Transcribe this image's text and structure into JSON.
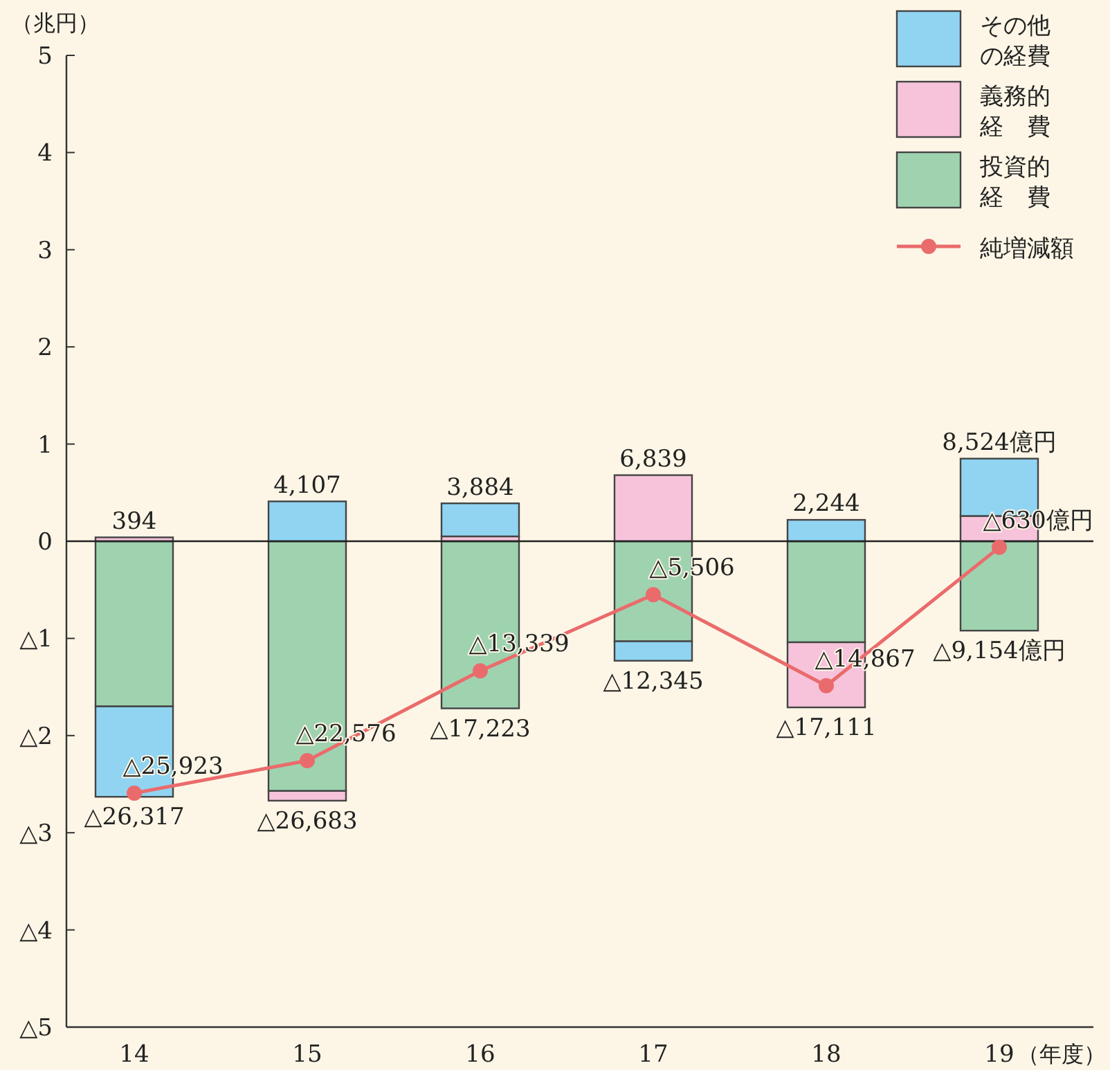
{
  "chart_data": {
    "type": "bar",
    "stacked": true,
    "categories": [
      "14",
      "15",
      "16",
      "17",
      "18",
      "19"
    ],
    "series": [
      {
        "name": "投資的経費",
        "color": "#9fd3b0",
        "values": [
          -1.7,
          -2.57,
          -1.72,
          -1.03,
          -1.04,
          -0.92
        ]
      },
      {
        "name": "義務的経費",
        "color": "#f6c3db",
        "values": [
          0.04,
          -0.1,
          0.05,
          0.68,
          -0.67,
          0.26
        ]
      },
      {
        "name": "その他の経費",
        "color": "#90d4f2",
        "values": [
          -0.93,
          0.41,
          0.34,
          -0.2,
          0.22,
          0.59
        ]
      },
      {
        "name": "純増減額",
        "type": "line",
        "color": "#ea6b6b",
        "marker": "circle",
        "values": [
          -2.5923,
          -2.2576,
          -1.3339,
          -0.5506,
          -1.4867,
          -0.063
        ]
      }
    ],
    "ylim": [
      -5,
      5
    ],
    "yticks": [
      {
        "value": -5,
        "label": "△5"
      },
      {
        "value": -4,
        "label": "△4"
      },
      {
        "value": -3,
        "label": "△3"
      },
      {
        "value": -2,
        "label": "△2"
      },
      {
        "value": -1,
        "label": "△1"
      },
      0,
      1,
      2,
      3,
      4,
      5
    ],
    "ylabel": "（兆円）",
    "xlabel": "（年度）",
    "legend": "top right",
    "ref_lines": [
      {
        "axis": "y",
        "value": 0,
        "color": "#222222"
      }
    ],
    "annotations": [
      {
        "text": "394",
        "x": "14",
        "y": 0.0394
      },
      {
        "text": "△26,317",
        "x": "14",
        "y": -2.6317
      },
      {
        "text": "△25,923",
        "x": "14",
        "y": -2.5923
      },
      {
        "text": "4,107",
        "x": "15",
        "y": 0.4107
      },
      {
        "text": "△26,683",
        "x": "15",
        "y": -2.6683
      },
      {
        "text": "△22,576",
        "x": "15",
        "y": -2.2576
      },
      {
        "text": "3,884",
        "x": "16",
        "y": 0.3884
      },
      {
        "text": "△17,223",
        "x": "16",
        "y": -1.7223
      },
      {
        "text": "△13,339",
        "x": "16",
        "y": -1.3339
      },
      {
        "text": "6,839",
        "x": "17",
        "y": 0.6839
      },
      {
        "text": "△12,345",
        "x": "17",
        "y": -1.2345
      },
      {
        "text": "△5,506",
        "x": "17",
        "y": -0.5506
      },
      {
        "text": "2,244",
        "x": "18",
        "y": 0.2244
      },
      {
        "text": "△17,111",
        "x": "18",
        "y": -1.7111
      },
      {
        "text": "△14,867",
        "x": "18",
        "y": -1.4867
      },
      {
        "text": "8,524億円",
        "x": "19",
        "y": 0.8524
      },
      {
        "text": "△9,154億円",
        "x": "19",
        "y": -0.9154
      },
      {
        "text": "△630億円",
        "x": "19",
        "y": -0.063
      }
    ]
  }
}
